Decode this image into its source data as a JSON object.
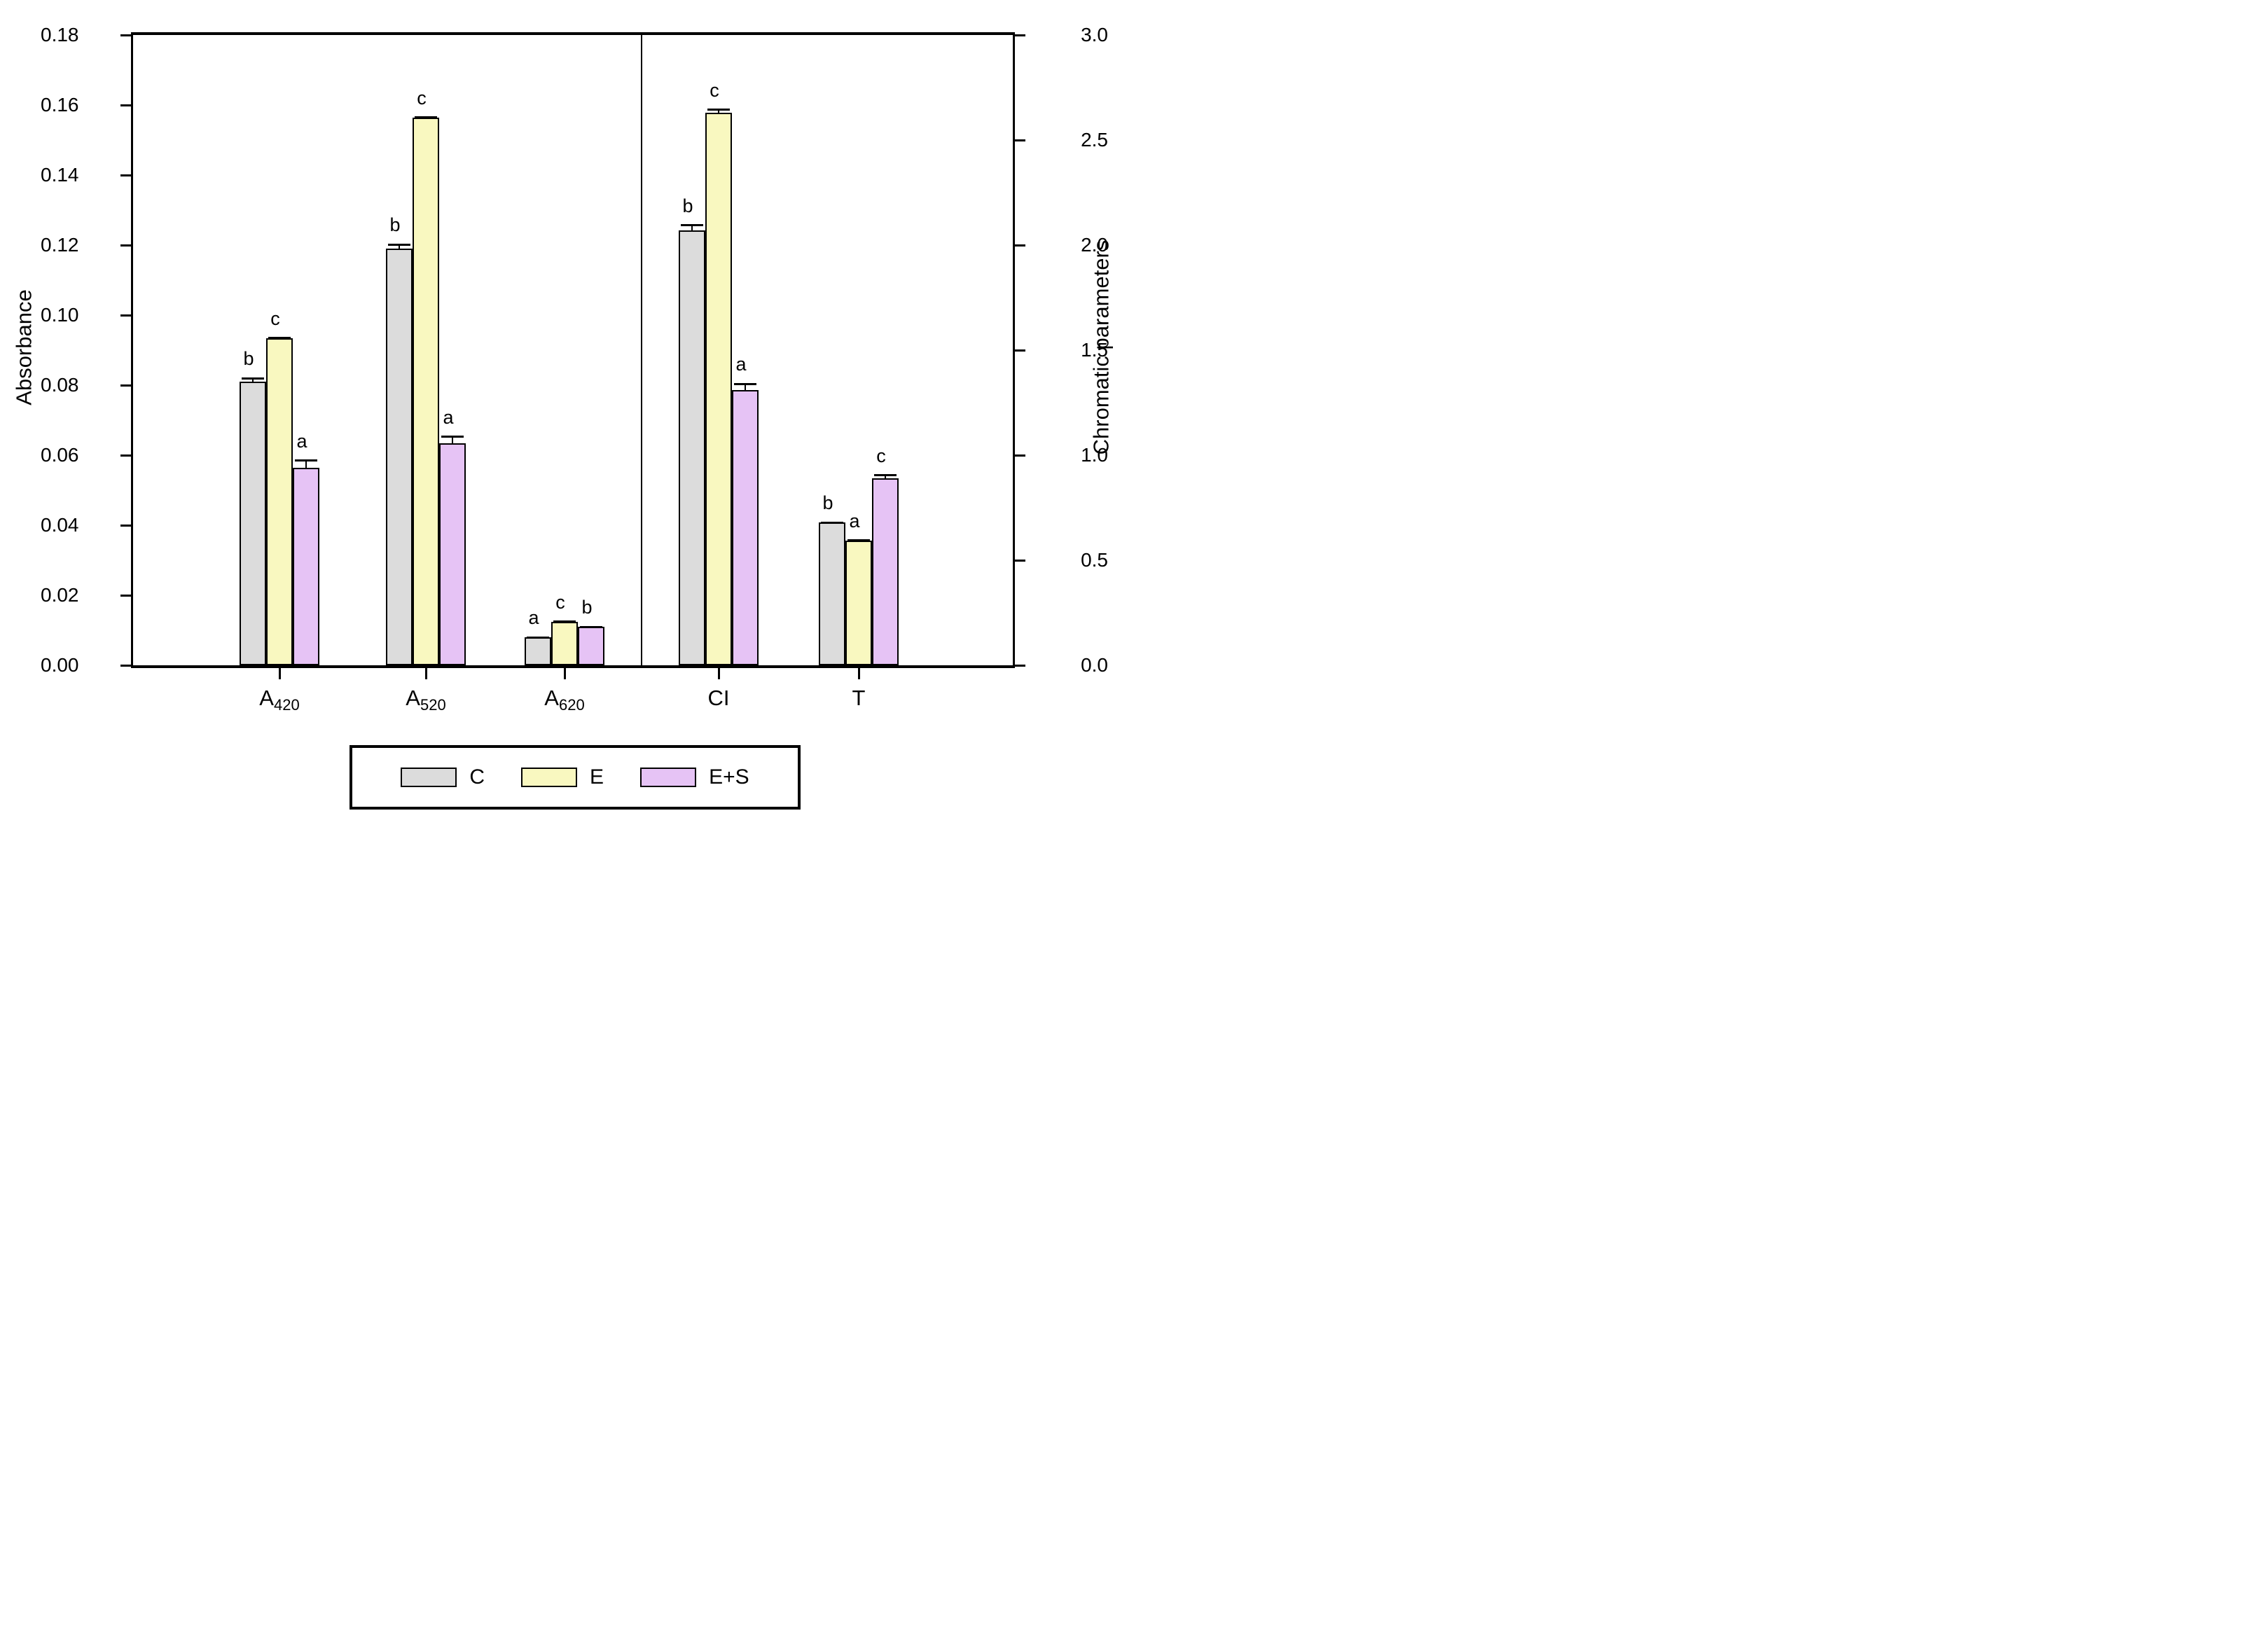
{
  "chart_data": {
    "type": "bar",
    "title": "",
    "grid": false,
    "axes": {
      "left": {
        "label": "Absorbance",
        "min": 0,
        "max": 0.18,
        "tick_values": [
          0,
          0.02,
          0.04,
          0.06,
          0.08,
          0.1,
          0.12,
          0.14,
          0.16,
          0.18
        ],
        "tick_labels": [
          "0.00",
          "0.02",
          "0.04",
          "0.06",
          "0.08",
          "0.10",
          "0.12",
          "0.14",
          "0.16",
          "0.18"
        ]
      },
      "right": {
        "label": "Chromatic parameters",
        "min": 0,
        "max": 3.0,
        "tick_values": [
          0,
          0.5,
          1.0,
          1.5,
          2.0,
          2.5,
          3.0
        ],
        "tick_labels": [
          "0.0",
          "0.5",
          "1.0",
          "1.5",
          "2.0",
          "2.5",
          "3.0"
        ]
      }
    },
    "categories": [
      {
        "id": "A420",
        "base": "A",
        "sub": "420",
        "axis": "left"
      },
      {
        "id": "A520",
        "base": "A",
        "sub": "520",
        "axis": "left"
      },
      {
        "id": "A620",
        "base": "A",
        "sub": "620",
        "axis": "left"
      },
      {
        "id": "CI",
        "base": "CI",
        "sub": "",
        "axis": "right"
      },
      {
        "id": "T",
        "base": "T",
        "sub": "",
        "axis": "right"
      }
    ],
    "divider_after_category_index": 2,
    "series": [
      {
        "name": "C",
        "fill_color": "#dcdcdc",
        "values": [
          0.081,
          0.119,
          0.008,
          2.07,
          0.68
        ],
        "errors": [
          0.001,
          0.0012,
          0,
          0.025,
          0
        ],
        "sig_letters": [
          "b",
          "b",
          "a",
          "b",
          "b"
        ]
      },
      {
        "name": "E",
        "fill_color": "#f9f8c0",
        "values": [
          0.0935,
          0.1565,
          0.0125,
          2.63,
          0.595
        ],
        "errors": [
          0,
          0,
          0,
          0.015,
          0
        ],
        "sig_letters": [
          "c",
          "c",
          "c",
          "c",
          "a"
        ]
      },
      {
        "name": "E+S",
        "fill_color": "#e6c3f5",
        "values": [
          0.0565,
          0.0635,
          0.011,
          1.31,
          0.89
        ],
        "errors": [
          0.002,
          0.0018,
          0,
          0.03,
          0.015
        ],
        "sig_letters": [
          "a",
          "a",
          "b",
          "a",
          "c"
        ]
      }
    ],
    "legend": {
      "position": "bottom-center",
      "entries": [
        {
          "label": "C",
          "color": "#dcdcdc"
        },
        {
          "label": "E",
          "color": "#f9f8c0"
        },
        {
          "label": "E+S",
          "color": "#e6c3f5"
        }
      ]
    }
  }
}
